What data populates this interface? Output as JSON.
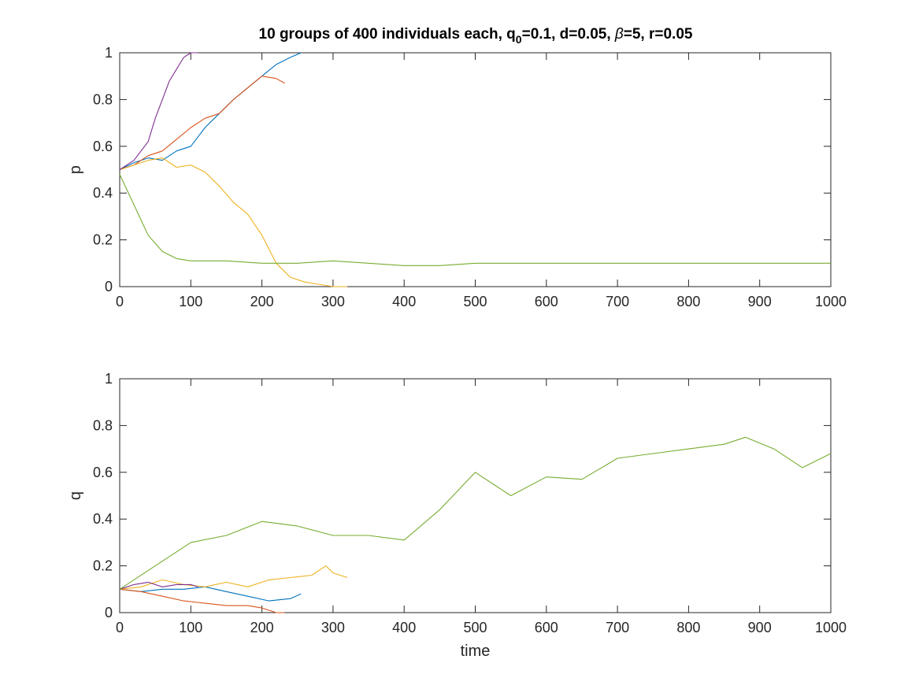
{
  "figure": {
    "title_main": "10 groups of 400 individuals each, q",
    "title_sub": "0",
    "title_rest_1": "=0.1, d=0.05, ",
    "title_beta": "β",
    "title_rest_2": "=5, r=0.05"
  },
  "chart_data": [
    {
      "type": "line",
      "ylabel": "p",
      "xlabel": "",
      "xlim": [
        0,
        1000
      ],
      "ylim": [
        0,
        1
      ],
      "xticks": [
        0,
        100,
        200,
        300,
        400,
        500,
        600,
        700,
        800,
        900,
        1000
      ],
      "yticks": [
        0,
        0.2,
        0.4,
        0.6,
        0.8,
        1
      ],
      "ytick_labels": [
        "0",
        "0.2",
        "0.4",
        "0.6",
        "0.8",
        "1"
      ],
      "grid": false,
      "series": [
        {
          "color": "#0072BD",
          "x": [
            0,
            20,
            40,
            60,
            80,
            100,
            120,
            140,
            160,
            180,
            200,
            220,
            240,
            255
          ],
          "y": [
            0.5,
            0.53,
            0.55,
            0.54,
            0.58,
            0.6,
            0.68,
            0.74,
            0.8,
            0.85,
            0.9,
            0.95,
            0.98,
            1.0
          ]
        },
        {
          "color": "#D95319",
          "x": [
            0,
            20,
            40,
            60,
            80,
            100,
            120,
            140,
            160,
            180,
            200,
            220,
            232
          ],
          "y": [
            0.5,
            0.52,
            0.56,
            0.58,
            0.63,
            0.68,
            0.72,
            0.74,
            0.8,
            0.85,
            0.9,
            0.89,
            0.87
          ]
        },
        {
          "color": "#EDB120",
          "x": [
            0,
            20,
            40,
            60,
            80,
            100,
            120,
            140,
            160,
            180,
            200,
            220,
            240,
            260,
            280,
            300,
            320
          ],
          "y": [
            0.5,
            0.52,
            0.54,
            0.55,
            0.51,
            0.52,
            0.49,
            0.43,
            0.36,
            0.31,
            0.22,
            0.1,
            0.04,
            0.02,
            0.01,
            0.0,
            0.0
          ]
        },
        {
          "color": "#7E2F8E",
          "x": [
            0,
            10,
            20,
            30,
            40,
            50,
            60,
            70,
            80,
            90,
            100,
            110
          ],
          "y": [
            0.5,
            0.52,
            0.54,
            0.58,
            0.62,
            0.72,
            0.8,
            0.88,
            0.93,
            0.98,
            1.0,
            1.0
          ]
        },
        {
          "color": "#77AC30",
          "x": [
            0,
            20,
            40,
            60,
            80,
            100,
            150,
            200,
            250,
            300,
            350,
            400,
            450,
            500,
            550,
            600,
            650,
            700,
            750,
            800,
            850,
            900,
            950,
            1000
          ],
          "y": [
            0.48,
            0.35,
            0.22,
            0.15,
            0.12,
            0.11,
            0.11,
            0.1,
            0.1,
            0.11,
            0.1,
            0.09,
            0.09,
            0.1,
            0.1,
            0.1,
            0.1,
            0.1,
            0.1,
            0.1,
            0.1,
            0.1,
            0.1,
            0.1
          ]
        }
      ]
    },
    {
      "type": "line",
      "ylabel": "q",
      "xlabel": "time",
      "xlim": [
        0,
        1000
      ],
      "ylim": [
        0,
        1
      ],
      "xticks": [
        0,
        100,
        200,
        300,
        400,
        500,
        600,
        700,
        800,
        900,
        1000
      ],
      "yticks": [
        0,
        0.2,
        0.4,
        0.6,
        0.8,
        1
      ],
      "ytick_labels": [
        "0",
        "0.2",
        "0.4",
        "0.6",
        "0.8",
        "1"
      ],
      "grid": false,
      "series": [
        {
          "color": "#0072BD",
          "x": [
            0,
            30,
            60,
            90,
            120,
            150,
            180,
            210,
            240,
            255
          ],
          "y": [
            0.1,
            0.09,
            0.1,
            0.1,
            0.11,
            0.09,
            0.07,
            0.05,
            0.06,
            0.08
          ]
        },
        {
          "color": "#D95319",
          "x": [
            0,
            30,
            60,
            90,
            120,
            150,
            180,
            200,
            220,
            232
          ],
          "y": [
            0.1,
            0.09,
            0.07,
            0.05,
            0.04,
            0.03,
            0.03,
            0.02,
            0.0,
            0.0
          ]
        },
        {
          "color": "#EDB120",
          "x": [
            0,
            30,
            60,
            90,
            120,
            150,
            180,
            210,
            240,
            270,
            290,
            300,
            320
          ],
          "y": [
            0.1,
            0.11,
            0.14,
            0.12,
            0.11,
            0.13,
            0.11,
            0.14,
            0.15,
            0.16,
            0.2,
            0.17,
            0.15
          ]
        },
        {
          "color": "#7E2F8E",
          "x": [
            0,
            20,
            40,
            60,
            80,
            100,
            110
          ],
          "y": [
            0.1,
            0.12,
            0.13,
            0.11,
            0.12,
            0.12,
            0.11
          ]
        },
        {
          "color": "#77AC30",
          "x": [
            0,
            50,
            100,
            150,
            200,
            250,
            300,
            350,
            400,
            450,
            500,
            550,
            600,
            650,
            700,
            750,
            800,
            850,
            880,
            920,
            960,
            1000
          ],
          "y": [
            0.1,
            0.2,
            0.3,
            0.33,
            0.39,
            0.37,
            0.33,
            0.33,
            0.31,
            0.44,
            0.6,
            0.5,
            0.58,
            0.57,
            0.66,
            0.68,
            0.7,
            0.72,
            0.75,
            0.7,
            0.62,
            0.68
          ]
        }
      ]
    }
  ]
}
